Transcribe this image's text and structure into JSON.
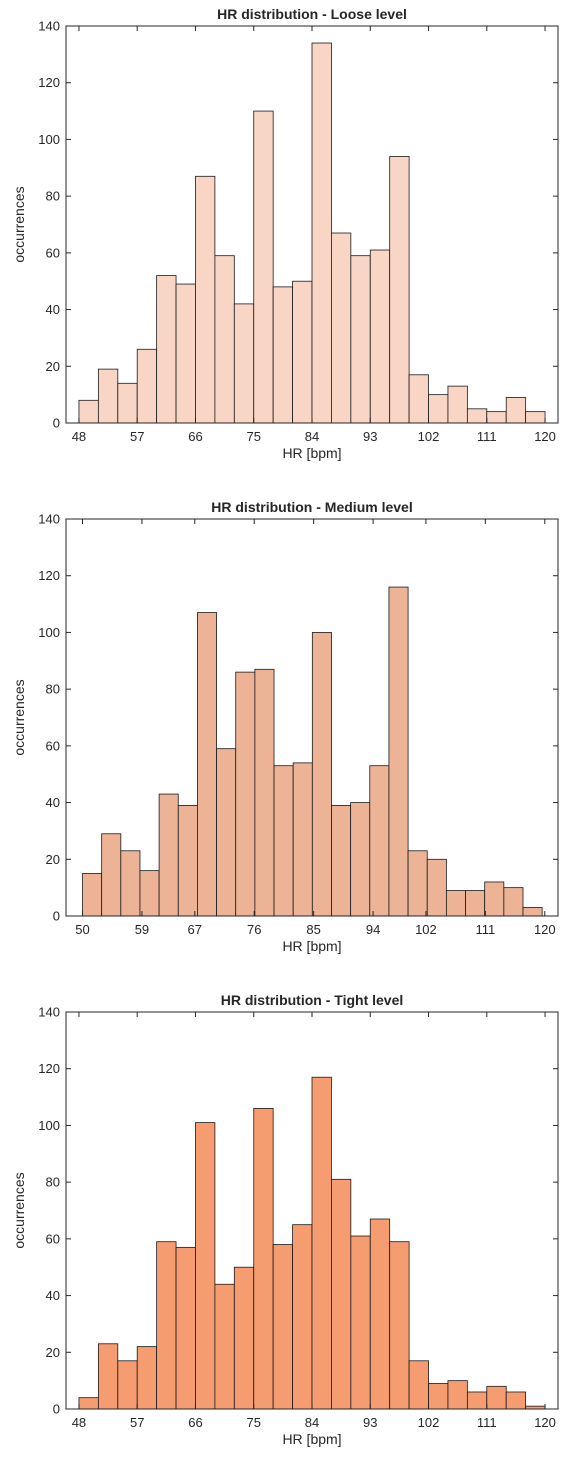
{
  "chart_data": [
    {
      "type": "bar",
      "title": "HR distribution - Loose level",
      "xlabel": "HR [bpm]",
      "ylabel": "occurrences",
      "xlim": [
        46,
        122
      ],
      "ylim": [
        0,
        140
      ],
      "yticks": [
        0,
        20,
        40,
        60,
        80,
        100,
        120,
        140
      ],
      "xticks": [
        48,
        57,
        66,
        75,
        84,
        93,
        102,
        111,
        120
      ],
      "bin_edges": [
        48,
        51,
        54,
        57,
        60,
        63,
        66,
        69,
        72,
        75,
        78,
        81,
        84,
        87,
        90,
        93,
        96,
        99,
        102,
        105,
        108,
        111,
        114,
        117,
        120
      ],
      "values": [
        8,
        19,
        14,
        26,
        52,
        49,
        87,
        59,
        42,
        110,
        48,
        50,
        134,
        67,
        59,
        61,
        94,
        17,
        10,
        13,
        5,
        4,
        9,
        4
      ],
      "bar_color": "#f9d5c6",
      "grid": false
    },
    {
      "type": "bar",
      "title": "HR distribution - Medium level",
      "xlabel": "HR [bpm]",
      "ylabel": "occurrences",
      "xlim": [
        47.5,
        122
      ],
      "ylim": [
        0,
        140
      ],
      "yticks": [
        0,
        20,
        40,
        60,
        80,
        100,
        120,
        140
      ],
      "xticks": [
        50,
        59,
        67,
        76,
        85,
        94,
        102,
        111,
        120
      ],
      "bin_edges": [
        50,
        52.9,
        55.8,
        58.7,
        61.6,
        64.5,
        67.4,
        70.3,
        73.2,
        76.1,
        79,
        81.9,
        84.8,
        87.7,
        90.6,
        93.5,
        96.4,
        99.3,
        102.2,
        105.1,
        108,
        110.9,
        113.8,
        116.7,
        119.6
      ],
      "values": [
        15,
        29,
        23,
        16,
        43,
        39,
        107,
        59,
        86,
        87,
        53,
        54,
        100,
        39,
        40,
        53,
        116,
        23,
        20,
        9,
        9,
        12,
        10,
        3
      ],
      "bar_color": "#edb396",
      "grid": false
    },
    {
      "type": "bar",
      "title": "HR distribution - Tight level",
      "xlabel": "HR [bpm]",
      "ylabel": "occurrences",
      "xlim": [
        46,
        122
      ],
      "ylim": [
        0,
        140
      ],
      "yticks": [
        0,
        20,
        40,
        60,
        80,
        100,
        120,
        140
      ],
      "xticks": [
        48,
        57,
        66,
        75,
        84,
        93,
        102,
        111,
        120
      ],
      "bin_edges": [
        48,
        51,
        54,
        57,
        60,
        63,
        66,
        69,
        72,
        75,
        78,
        81,
        84,
        87,
        90,
        93,
        96,
        99,
        102,
        105,
        108,
        111,
        114,
        117,
        120
      ],
      "values": [
        4,
        23,
        17,
        22,
        59,
        57,
        101,
        44,
        50,
        106,
        58,
        65,
        117,
        81,
        61,
        67,
        59,
        17,
        9,
        10,
        6,
        8,
        6,
        1
      ],
      "bar_color": "#f59c70",
      "grid": false
    }
  ]
}
